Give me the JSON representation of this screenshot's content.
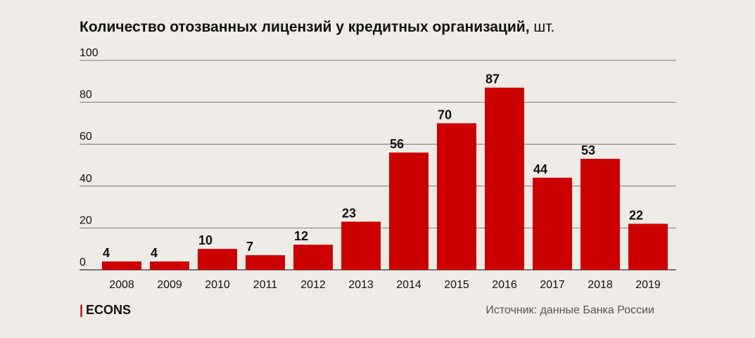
{
  "title": "Количество отозванных лицензий у кредитных организаций,",
  "title_unit": "шт.",
  "brand": {
    "mark": "|",
    "name": "ECONS"
  },
  "source": "Источник: данные Банка России",
  "colors": {
    "bar": "#cc0000",
    "grid": "#5a5a5a",
    "background": "#efebe6"
  },
  "chart_data": {
    "type": "bar",
    "title": "Количество отозванных лицензий у кредитных организаций, шт.",
    "categories": [
      "2008",
      "2009",
      "2010",
      "2011",
      "2012",
      "2013",
      "2014",
      "2015",
      "2016",
      "2017",
      "2018",
      "2019"
    ],
    "values": [
      4,
      4,
      10,
      7,
      12,
      23,
      56,
      70,
      87,
      44,
      53,
      22
    ],
    "yticks": [
      "0",
      "20",
      "40",
      "60",
      "80",
      "100"
    ],
    "ylim": [
      0,
      100
    ],
    "grid": true,
    "data_labels": true
  }
}
